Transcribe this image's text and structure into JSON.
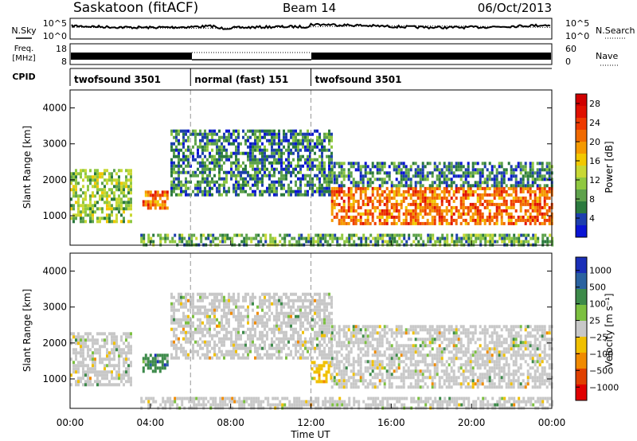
{
  "header": {
    "station": "Saskatoon (fitACF)",
    "beam": "Beam 14",
    "date": "06/Oct/2013"
  },
  "panels": {
    "nsky": {
      "left_label": "N.Sky",
      "right_label": "N.Search",
      "left_ticks": [
        "10^5",
        "10^0"
      ],
      "right_ticks": [
        "10^5",
        "10^0"
      ]
    },
    "freq": {
      "left_label": "Freq.",
      "unit": "[MHz]",
      "right_label": "Nave",
      "left_ticks": [
        "18",
        "8"
      ],
      "right_ticks": [
        "60",
        "0"
      ]
    },
    "cpid": {
      "label": "CPID",
      "modes": [
        {
          "name": "twofsound 3501",
          "start_hour": 0,
          "end_hour": 6
        },
        {
          "name": "normal (fast) 151",
          "start_hour": 6,
          "end_hour": 12
        },
        {
          "name": "twofsound 3501",
          "start_hour": 12,
          "end_hour": 24
        }
      ]
    }
  },
  "chart_data": [
    {
      "type": "heatmap",
      "quantity": "Power",
      "ylabel": "Slant Range [km]",
      "ylim": [
        180,
        4500
      ],
      "yticks": [
        "1000",
        "2000",
        "3000",
        "4000"
      ],
      "xlim": [
        0,
        24
      ],
      "colorbar": {
        "label": "Power [dB]",
        "ticks": [
          "4",
          "8",
          "12",
          "16",
          "20",
          "24",
          "28"
        ],
        "range": [
          0,
          30
        ],
        "colors": [
          "#0a14d4",
          "#1d3fae",
          "#2b7a3e",
          "#5ea24c",
          "#8fc840",
          "#c8d834",
          "#f2c800",
          "#f59a00",
          "#f06a00",
          "#ee3a00",
          "#e01000",
          "#d00000"
        ]
      },
      "regions": [
        {
          "t0": 0.0,
          "t1": 3.0,
          "r0": 800,
          "r1": 2300,
          "level": 12
        },
        {
          "t0": 3.6,
          "t1": 4.9,
          "r0": 1200,
          "r1": 1700,
          "level": 22
        },
        {
          "t0": 5.0,
          "t1": 13.0,
          "r0": 1600,
          "r1": 3400,
          "level": 5
        },
        {
          "t0": 13.0,
          "t1": 24.0,
          "r0": 800,
          "r1": 1800,
          "level": 22
        },
        {
          "t0": 13.0,
          "t1": 24.0,
          "r0": 1800,
          "r1": 2500,
          "level": 6
        },
        {
          "t0": 3.5,
          "t1": 24.0,
          "r0": 180,
          "r1": 500,
          "level": 8
        }
      ]
    },
    {
      "type": "heatmap",
      "quantity": "Velocity",
      "ylabel": "Slant Range [km]",
      "ylim": [
        180,
        4500
      ],
      "yticks": [
        "1000",
        "2000",
        "3000",
        "4000"
      ],
      "xlim": [
        0,
        24
      ],
      "xticks": [
        "00:00",
        "04:00",
        "08:00",
        "12:00",
        "16:00",
        "20:00",
        "00:00"
      ],
      "xlabel": "Time UT",
      "colorbar": {
        "label": "Velocity [m s⁻¹]",
        "ticks": [
          "1000",
          "500",
          "100",
          "25",
          "−25",
          "−100",
          "−500",
          "−1000"
        ],
        "colors": [
          "#1a2fb8",
          "#2a62a0",
          "#3d8a4a",
          "#7cc040",
          "#c8c8c8",
          "#f0c000",
          "#f08a00",
          "#e04000",
          "#e00000"
        ]
      },
      "regions": [
        {
          "t0": 0.0,
          "t1": 3.0,
          "r0": 800,
          "r1": 2300,
          "level": "25"
        },
        {
          "t0": 3.6,
          "t1": 4.9,
          "r0": 1200,
          "r1": 1700,
          "level": "100"
        },
        {
          "t0": 5.0,
          "t1": 13.0,
          "r0": 1600,
          "r1": 3400,
          "level": "25"
        },
        {
          "t0": 12.0,
          "t1": 13.0,
          "r0": 900,
          "r1": 1500,
          "level": "-100"
        },
        {
          "t0": 13.0,
          "t1": 24.0,
          "r0": 800,
          "r1": 2500,
          "level": "25"
        },
        {
          "t0": 3.5,
          "t1": 24.0,
          "r0": 180,
          "r1": 500,
          "level": "25"
        }
      ]
    }
  ]
}
